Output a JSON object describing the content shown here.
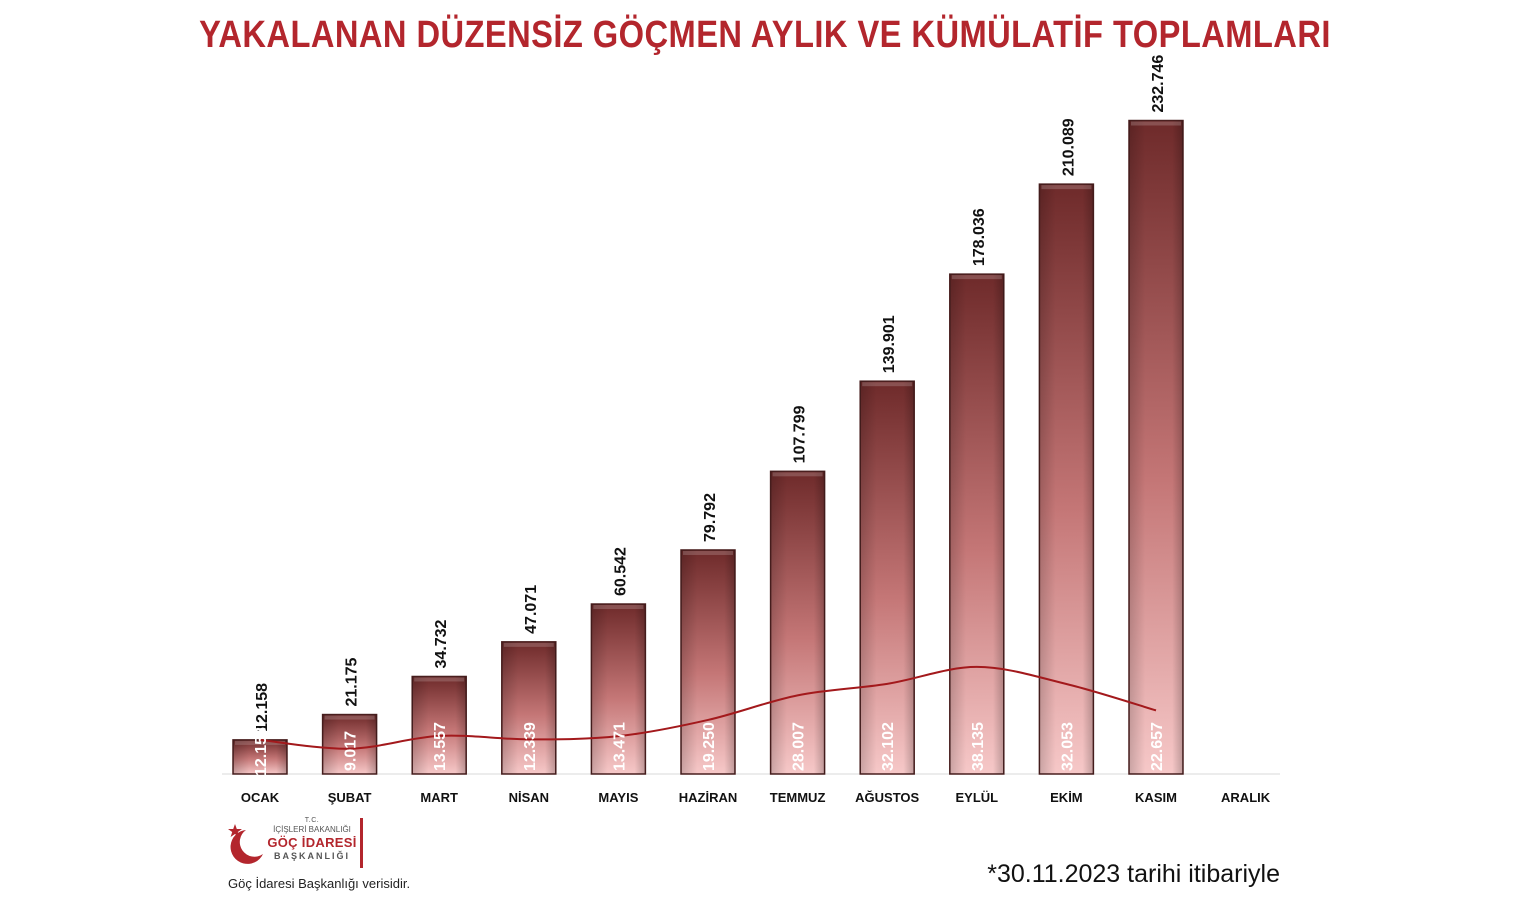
{
  "title": "YAKALANAN DÜZENSİZ GÖÇMEN AYLIK VE KÜMÜLATİF TOPLAMLARI",
  "logo": {
    "line1": "T.C.",
    "line2": "İÇİŞLERİ BAKANLIĞI",
    "line3": "GÖÇ İDARESİ",
    "line4": "BAŞKANLIĞI"
  },
  "source": "Göç İdaresi Başkanlığı verisidir.",
  "note": "*30.11.2023 tarihi itibariyle",
  "colors": {
    "title": "#b3262d",
    "bar_top": "#6e2a2a",
    "bar_bottom": "#f6c8c8",
    "line": "#a3191c"
  },
  "chart_data": {
    "type": "bar",
    "categories": [
      "OCAK",
      "ŞUBAT",
      "MART",
      "NİSAN",
      "MAYIS",
      "HAZİRAN",
      "TEMMUZ",
      "AĞUSTOS",
      "EYLÜL",
      "EKİM",
      "KASIM",
      "ARALIK"
    ],
    "series": [
      {
        "values": [
          12158,
          21175,
          34732,
          47071,
          60542,
          79792,
          107799,
          139901,
          178036,
          210089,
          232746,
          null
        ],
        "labels": [
          "12.158",
          "21.175",
          "34.732",
          "47.071",
          "60.542",
          "79.792",
          "107.799",
          "139.901",
          "178.036",
          "210.089",
          "232.746",
          ""
        ]
      },
      {
        "type": "line",
        "values": [
          12158,
          9017,
          13557,
          12339,
          13471,
          19250,
          28007,
          32102,
          38135,
          32053,
          22657,
          null
        ],
        "labels": [
          "12.158",
          "9.017",
          "13.557",
          "12.339",
          "13.471",
          "19.250",
          "28.007",
          "32.102",
          "38.135",
          "32.053",
          "22.657",
          ""
        ]
      }
    ],
    "ylim": [
      0,
      260000
    ],
    "grid": false,
    "legend": "none"
  }
}
